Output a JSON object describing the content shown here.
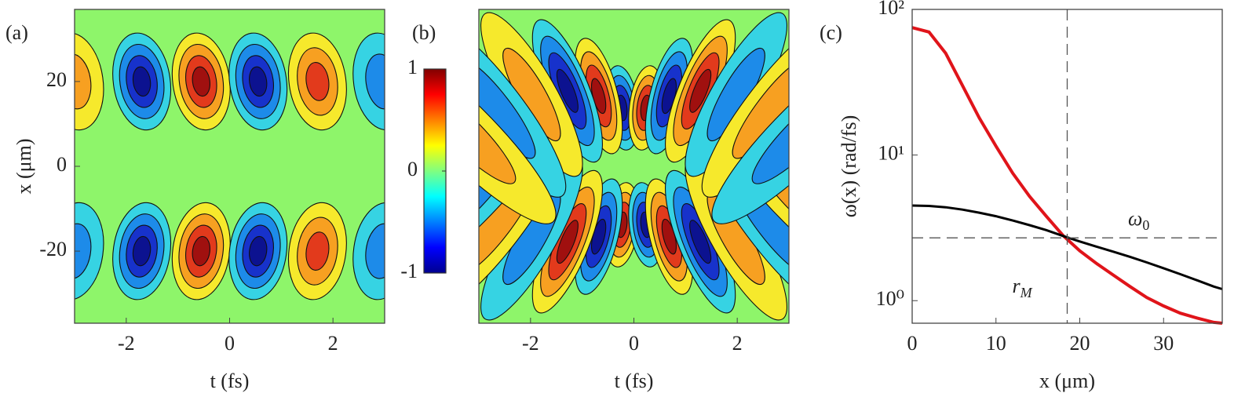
{
  "chart_data": [
    {
      "type": "contour",
      "panel_label": "(a)",
      "xlabel": "t (fs)",
      "ylabel": "x (μm)",
      "xlim": [
        -3,
        3
      ],
      "xticks": [
        -2,
        0,
        2
      ],
      "ylim": [
        -37,
        37
      ],
      "yticks": [
        -20,
        0,
        20
      ],
      "pattern": "bands",
      "background": "#8ef56a",
      "colorbar_lim": [
        -1,
        1
      ],
      "colorbar_ticks": [
        -1,
        0,
        1
      ]
    },
    {
      "type": "contour",
      "panel_label": "(b)",
      "xlabel": "t (fs)",
      "xlim": [
        -3,
        3
      ],
      "xticks": [
        -2,
        0,
        2
      ],
      "ylim": [
        -37,
        37
      ],
      "pattern": "fan",
      "background": "#8ef56a"
    },
    {
      "type": "line",
      "panel_label": "(c)",
      "xlabel": "x (μm)",
      "ylabel": "ω(x) (rad/fs)",
      "log_y": true,
      "xlim": [
        0,
        37
      ],
      "xticks": [
        0,
        10,
        20,
        30
      ],
      "ylim": [
        0.7,
        100
      ],
      "yticks": [
        {
          "value": 1,
          "label": "10⁰"
        },
        {
          "value": 10,
          "label": "10¹"
        },
        {
          "value": 100,
          "label": "10²"
        }
      ],
      "x": [
        0,
        2,
        4,
        6,
        8,
        10,
        12,
        14,
        16,
        18,
        20,
        22,
        24,
        26,
        28,
        30,
        32,
        34,
        36,
        37
      ],
      "series": [
        {
          "color": "#e0141a",
          "values": [
            75,
            70,
            50,
            30,
            18,
            11.5,
            7.5,
            5.2,
            3.8,
            2.8,
            2.2,
            1.8,
            1.5,
            1.25,
            1.05,
            0.92,
            0.82,
            0.76,
            0.71,
            0.7
          ]
        },
        {
          "color": "#000000",
          "values": [
            4.5,
            4.47,
            4.38,
            4.22,
            4.02,
            3.8,
            3.55,
            3.3,
            3.05,
            2.78,
            2.55,
            2.35,
            2.17,
            2.0,
            1.83,
            1.67,
            1.52,
            1.38,
            1.25,
            1.2
          ]
        }
      ],
      "hline": {
        "value": 2.7,
        "label": "ω0"
      },
      "vline": {
        "value": 18.5,
        "label": "rM"
      }
    }
  ]
}
